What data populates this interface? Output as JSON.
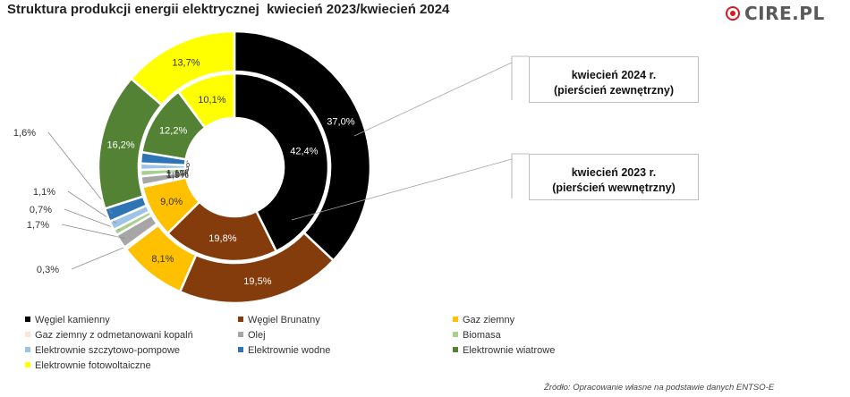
{
  "title": "Struktura produkcji energii elektrycznej  kwiecień 2023/kwiecień 2024",
  "logo_text": "CIRE.PL",
  "source": "Źródło: Opracowanie własne na podstawie danych ENTSO-E",
  "callouts": {
    "outer": {
      "line1": "kwiecień 2024 r.",
      "line2": "(pierścień zewnętrzny)"
    },
    "inner": {
      "line1": "kwiecień 2023 r.",
      "line2": "(pierścień wewnętrzny)"
    }
  },
  "chart_data": {
    "type": "pie",
    "title": "Struktura produkcji energii elektrycznej  kwiecień 2023/kwiecień 2024",
    "categories": [
      "Węgiel kamienny",
      "Węgiel Brunatny",
      "Gaz  ziemny",
      "Gaz ziemny z odmetanowani kopalń",
      "Olej",
      "Biomasa",
      "Elektrownie szczytowo-pompowe",
      "Elektrownie wodne",
      "Elektrownie wiatrowe",
      "Elektrownie fotowoltaiczne"
    ],
    "colors": [
      "#000000",
      "#843c0c",
      "#ffc000",
      "#fbe5d6",
      "#a6a6a6",
      "#a9d18e",
      "#9dc3e6",
      "#2e75b6",
      "#548235",
      "#ffff00"
    ],
    "series": [
      {
        "name": "kwiecień 2024 r. (pierścień zewnętrzny)",
        "ring": "outer",
        "values": [
          37.0,
          19.5,
          8.1,
          0.3,
          1.7,
          0.7,
          1.1,
          1.6,
          16.2,
          13.7
        ],
        "labels": [
          "37,0%",
          "19,5%",
          "8,1%",
          "0,3%",
          "1,7%",
          "0,7%",
          "1,1%",
          "1,6%",
          "16,2%",
          "13,7%"
        ]
      },
      {
        "name": "kwiecień 2023 r. (pierścień wewnętrzny)",
        "ring": "inner",
        "values": [
          42.4,
          19.8,
          9.0,
          0.3,
          1.5,
          1.1,
          1.1,
          1.9,
          12.2,
          10.1
        ],
        "labels": [
          "42,4%",
          "19,8%",
          "9,0%",
          "0,3%",
          "1,5%",
          "1,1%",
          "1,1%",
          "1,9%",
          "12,2%",
          "10,1%"
        ]
      }
    ],
    "legend_position": "bottom"
  }
}
